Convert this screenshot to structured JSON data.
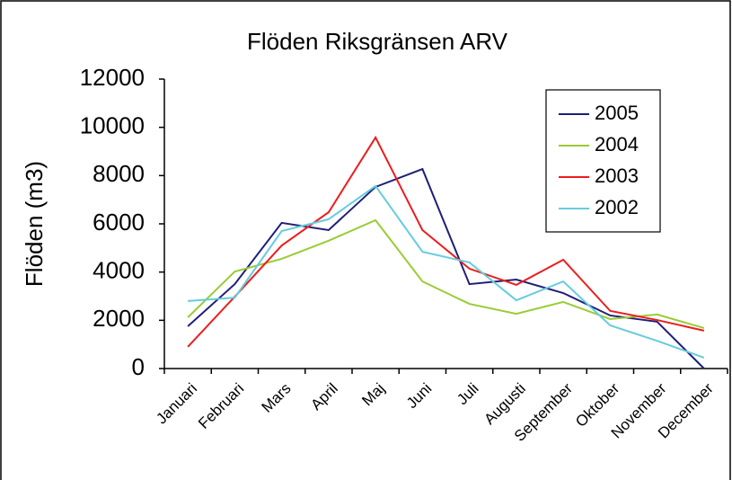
{
  "chart_data": {
    "type": "line",
    "title": "Flöden Riksgränsen ARV",
    "ylabel": "Flöden (m3)",
    "categories": [
      "Januari",
      "Februari",
      "Mars",
      "April",
      "Maj",
      "Juni",
      "Juli",
      "Augusti",
      "September",
      "Oktober",
      "November",
      "December"
    ],
    "series": [
      {
        "name": "2005",
        "color": "#1f1f78",
        "values": [
          1750,
          3500,
          6040,
          5740,
          7530,
          8270,
          3500,
          3690,
          3130,
          2200,
          1940,
          0
        ]
      },
      {
        "name": "2004",
        "color": "#99cc33",
        "values": [
          2120,
          4020,
          4550,
          5300,
          6150,
          3610,
          2680,
          2270,
          2760,
          2050,
          2240,
          1680
        ]
      },
      {
        "name": "2003",
        "color": "#ee1c1c",
        "values": [
          900,
          2980,
          5100,
          6480,
          9580,
          5740,
          4140,
          3470,
          4510,
          2390,
          2010,
          1570
        ]
      },
      {
        "name": "2002",
        "color": "#66ccdd",
        "values": [
          2800,
          2940,
          5700,
          6190,
          7570,
          4840,
          4400,
          2830,
          3610,
          1790,
          1150,
          450
        ]
      }
    ],
    "ylim": [
      0,
      12000
    ],
    "yticks": [
      0,
      2000,
      4000,
      6000,
      8000,
      10000,
      12000
    ],
    "grid": false,
    "legend": "upper right"
  }
}
